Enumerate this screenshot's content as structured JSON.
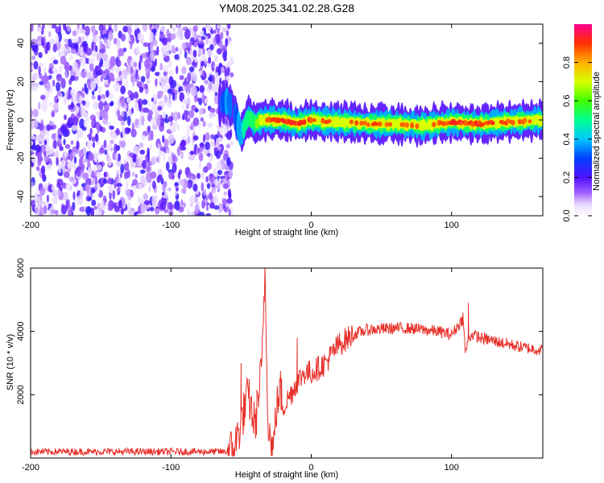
{
  "title": "YM08.2025.341.02.28.G28",
  "colorbar": {
    "label": "Normalized spectral amplitude",
    "ticks": [
      "0.0",
      "0.2",
      "0.4",
      "0.6",
      "0.8"
    ],
    "tick_values": [
      0.0,
      0.2,
      0.4,
      0.6,
      0.8
    ],
    "range": [
      0,
      1
    ]
  },
  "chart_data": [
    {
      "type": "heatmap",
      "name": "spectrogram",
      "xlabel": "Height of straight line (km)",
      "ylabel": "Frequency (Hz)",
      "xlim": [
        -200,
        165
      ],
      "ylim": [
        -50,
        50
      ],
      "xticks": [
        -200,
        -100,
        0,
        100
      ],
      "yticks": [
        -40,
        -20,
        0,
        20,
        40
      ],
      "xtick_labels": [
        "-200",
        "-100",
        "0",
        "100"
      ],
      "ytick_labels": [
        "-40",
        "-20",
        "0",
        "20",
        "40"
      ],
      "noise_region_x": [
        -200,
        -60
      ],
      "signal_line": {
        "x": [
          -65,
          -60,
          -55,
          -50,
          -45,
          -40,
          -35,
          -30,
          -20,
          -10,
          0,
          10,
          20,
          40,
          60,
          80,
          100,
          120,
          140,
          165
        ],
        "freq": [
          8,
          10,
          5,
          -8,
          2,
          -2,
          0,
          0,
          0,
          -2,
          0,
          -1,
          -1,
          -2,
          -2,
          -3,
          -1,
          -2,
          -1,
          0
        ],
        "amplitude": [
          0.3,
          0.35,
          0.3,
          0.4,
          0.5,
          0.6,
          0.75,
          0.85,
          0.9,
          0.9,
          0.85,
          0.85,
          0.8,
          0.85,
          0.85,
          0.8,
          0.9,
          0.9,
          0.85,
          0.8
        ]
      }
    },
    {
      "type": "line",
      "name": "snr",
      "xlabel": "Height of straight line (km)",
      "ylabel": "SNR (10 * v/v)",
      "xlim": [
        -200,
        165
      ],
      "ylim": [
        0,
        6000
      ],
      "xticks": [
        -200,
        -100,
        0,
        100
      ],
      "yticks": [
        2000,
        4000,
        6000
      ],
      "xtick_labels": [
        "-200",
        "-100",
        "0",
        "100"
      ],
      "ytick_labels": [
        "2000",
        "4000",
        "6000"
      ],
      "color": "#e8302a",
      "series": [
        {
          "name": "SNR",
          "x": [
            -200,
            -150,
            -100,
            -60,
            -55,
            -50,
            -45,
            -40,
            -35,
            -33,
            -31,
            -29,
            -27,
            -25,
            -22,
            -20,
            -15,
            -10,
            -5,
            0,
            10,
            20,
            30,
            40,
            60,
            70,
            80,
            90,
            100,
            105,
            108,
            110,
            112,
            115,
            120,
            130,
            140,
            150,
            165
          ],
          "y": [
            200,
            200,
            200,
            200,
            300,
            1100,
            2000,
            1000,
            3000,
            6000,
            1500,
            500,
            300,
            1500,
            2200,
            1600,
            2000,
            2400,
            2700,
            2700,
            3000,
            3600,
            3900,
            4050,
            4100,
            4100,
            4050,
            4000,
            3900,
            4200,
            4400,
            3300,
            3800,
            3900,
            3800,
            3700,
            3600,
            3500,
            3400
          ],
          "spikes": [
            {
              "x": -33,
              "y": 6000
            },
            {
              "x": -50,
              "y": 3000
            },
            {
              "x": -10,
              "y": 3800
            },
            {
              "x": 108,
              "y": 4600
            },
            {
              "x": 112,
              "y": 4900
            }
          ]
        }
      ]
    }
  ]
}
